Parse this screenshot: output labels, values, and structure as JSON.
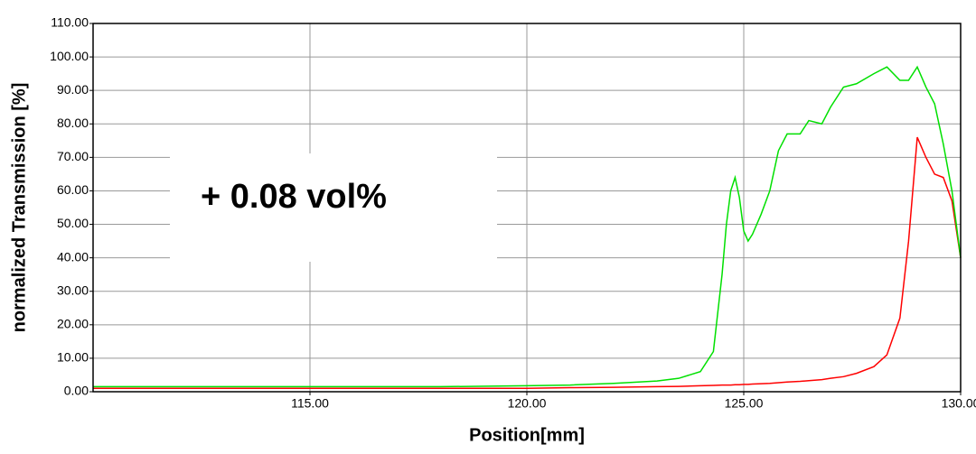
{
  "chart_data": {
    "type": "line",
    "xlabel": "Position[mm]",
    "ylabel": "normalized Transmission [%]",
    "annotation": "+ 0.08 vol%",
    "x": [
      110,
      112,
      114,
      116,
      118,
      120,
      121,
      122,
      123,
      123.5,
      124,
      124.3,
      124.5,
      124.6,
      124.7,
      124.8,
      124.9,
      125.0,
      125.1,
      125.2,
      125.4,
      125.6,
      125.8,
      126.0,
      126.3,
      126.5,
      126.8,
      127.0,
      127.3,
      127.6,
      128.0,
      128.3,
      128.6,
      128.8,
      129.0,
      129.2,
      129.4,
      129.6,
      129.8,
      130
    ],
    "series": [
      {
        "color": "#00e000",
        "values": [
          1.5,
          1.5,
          1.5,
          1.5,
          1.5,
          1.8,
          2.0,
          2.5,
          3.2,
          4,
          6,
          12,
          35,
          50,
          60,
          64,
          58,
          48,
          45,
          47,
          53,
          60,
          72,
          77,
          77,
          81,
          80,
          85,
          91,
          92,
          95,
          97,
          93,
          93,
          97,
          91,
          86,
          74,
          60,
          40
        ]
      },
      {
        "color": "#ff0000",
        "values": [
          1,
          1,
          1,
          1,
          1,
          1,
          1.2,
          1.3,
          1.5,
          1.6,
          1.8,
          1.9,
          2,
          2,
          2,
          2.1,
          2.1,
          2.2,
          2.2,
          2.3,
          2.4,
          2.5,
          2.7,
          2.9,
          3.1,
          3.3,
          3.6,
          4,
          4.5,
          5.5,
          7.5,
          11,
          22,
          45,
          76,
          70,
          65,
          64,
          57,
          40
        ]
      }
    ],
    "xlim": [
      110,
      130
    ],
    "ylim": [
      0,
      110
    ],
    "xticks": [
      {
        "value": 115,
        "label": "115.00"
      },
      {
        "value": 120,
        "label": "120.00"
      },
      {
        "value": 125,
        "label": "125.00"
      },
      {
        "value": 130,
        "label": "130.00"
      }
    ],
    "yticks": [
      {
        "value": 0,
        "label": "0.00"
      },
      {
        "value": 10,
        "label": "10.00"
      },
      {
        "value": 20,
        "label": "20.00"
      },
      {
        "value": 30,
        "label": "30.00"
      },
      {
        "value": 40,
        "label": "40.00"
      },
      {
        "value": 50,
        "label": "50.00"
      },
      {
        "value": 60,
        "label": "60.00"
      },
      {
        "value": 70,
        "label": "70.00"
      },
      {
        "value": 80,
        "label": "80.00"
      },
      {
        "value": 90,
        "label": "90.00"
      },
      {
        "value": 100,
        "label": "100.00"
      },
      {
        "value": 110,
        "label": "110.00"
      }
    ],
    "grid": true
  }
}
